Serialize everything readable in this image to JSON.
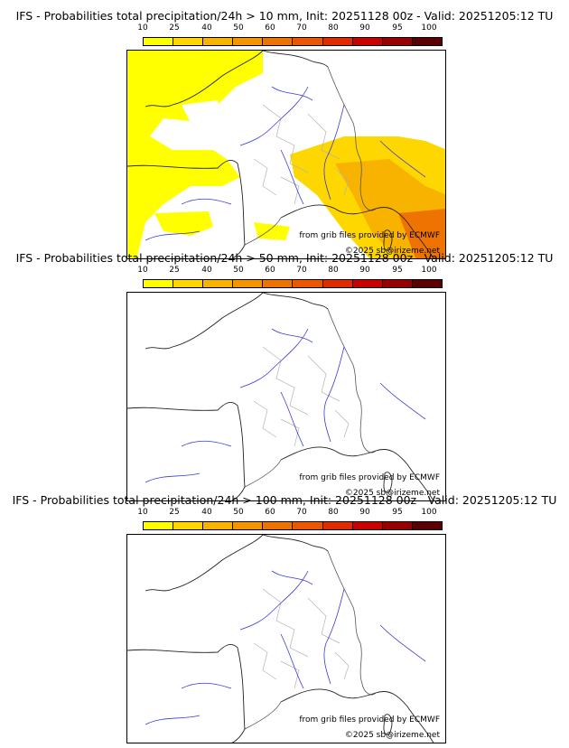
{
  "colorbar": {
    "ticks": [
      "10",
      "25",
      "40",
      "50",
      "60",
      "70",
      "80",
      "90",
      "95",
      "100"
    ],
    "colors": [
      "#ffff00",
      "#ffd700",
      "#f7b300",
      "#f39400",
      "#ef7300",
      "#eb5600",
      "#e02a00",
      "#c80000",
      "#960000",
      "#5a0000"
    ]
  },
  "panels": [
    {
      "title": "IFS - Probabilities total precipitation/24h > 10 mm, Init: 20251128 00z - Valid: 20251205:12 TU",
      "credit_source": "from grib files provided by ECMWF",
      "credit_copyright": "©2025 sb@irizeme.net",
      "precip": "high"
    },
    {
      "title": "IFS - Probabilities total precipitation/24h > 50 mm, Init: 20251128 00z - Valid: 20251205:12 TU",
      "credit_source": "from grib files provided by ECMWF",
      "credit_copyright": "©2025 sb@irizeme.net",
      "precip": "none"
    },
    {
      "title": "IFS - Probabilities total precipitation/24h > 100 mm, Init: 20251128 00z - Valid: 20251205:12 TU",
      "credit_source": "from grib files provided by ECMWF",
      "credit_copyright": "©2025 sb@irizeme.net",
      "precip": "none"
    }
  ]
}
